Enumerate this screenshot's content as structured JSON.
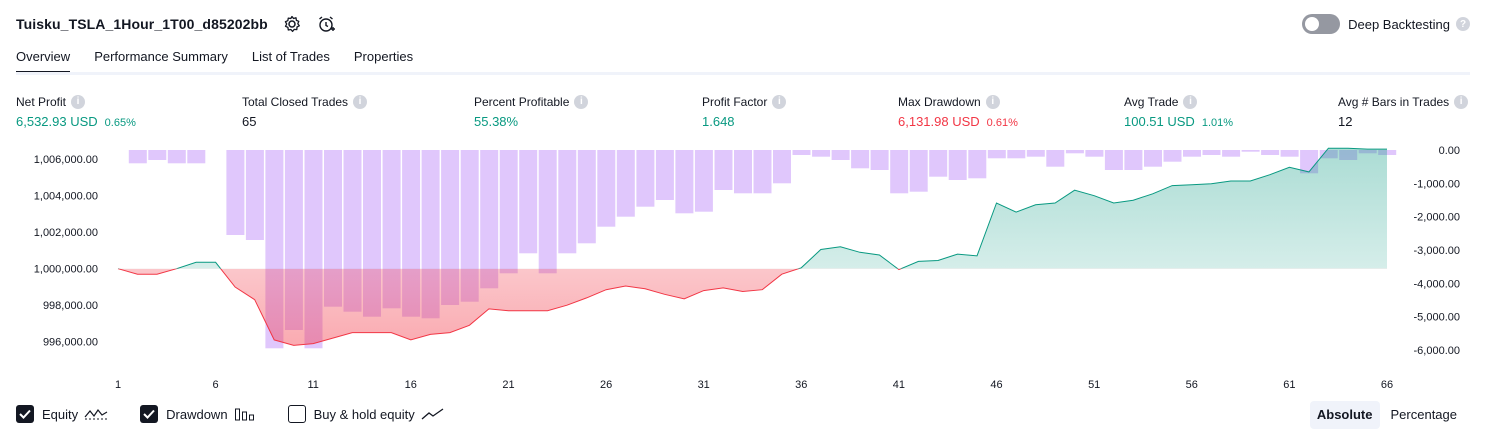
{
  "header": {
    "title": "Tuisku_TSLA_1Hour_1T00_d85202bb",
    "settings_icon": "gear-icon",
    "add_alert_icon": "alarm-clock-plus-icon"
  },
  "deep_backtesting": {
    "label": "Deep Backtesting",
    "enabled": false,
    "help": "?"
  },
  "tabs": [
    {
      "label": "Overview",
      "active": true
    },
    {
      "label": "Performance Summary",
      "active": false
    },
    {
      "label": "List of Trades",
      "active": false
    },
    {
      "label": "Properties",
      "active": false
    }
  ],
  "metrics": {
    "net_profit": {
      "label": "Net Profit",
      "value": "6,532.93 USD",
      "pct": "0.65%"
    },
    "total_closed_trades": {
      "label": "Total Closed Trades",
      "value": "65"
    },
    "percent_profitable": {
      "label": "Percent Profitable",
      "value": "55.38%"
    },
    "profit_factor": {
      "label": "Profit Factor",
      "value": "1.648"
    },
    "max_drawdown": {
      "label": "Max Drawdown",
      "value": "6,131.98 USD",
      "pct": "0.61%"
    },
    "avg_trade": {
      "label": "Avg Trade",
      "value": "100.51 USD",
      "pct": "1.01%"
    },
    "avg_bars": {
      "label": "Avg # Bars in Trades",
      "value": "12"
    }
  },
  "chart_data": {
    "type": "line",
    "x_ticks": [
      1,
      6,
      11,
      16,
      21,
      26,
      31,
      36,
      41,
      46,
      51,
      56,
      61,
      66
    ],
    "xlim": [
      1,
      66
    ],
    "left_axis": {
      "ticks": [
        "1,006,000.00",
        "1,004,000.00",
        "1,002,000.00",
        "1,000,000.00",
        "998,000.00",
        "996,000.00"
      ],
      "ylim": [
        995000,
        1006500
      ]
    },
    "right_axis": {
      "ticks": [
        "0.00",
        "-1,000.00",
        "-2,000.00",
        "-3,000.00",
        "-4,000.00",
        "-5,000.00",
        "-6,000.00"
      ],
      "ylim": [
        -6300,
        0
      ]
    },
    "baseline": 1000000,
    "series": [
      {
        "name": "Equity",
        "axis": "left",
        "values": [
          1000000,
          999700,
          999700,
          1000000,
          1000350,
          1000350,
          999000,
          998300,
          996100,
          995800,
          995900,
          996200,
          996500,
          996500,
          996500,
          996100,
          996400,
          996500,
          996900,
          997800,
          997700,
          997700,
          997700,
          998000,
          998400,
          998850,
          999050,
          998900,
          998600,
          998350,
          998800,
          998950,
          998750,
          998850,
          999700,
          1000050,
          1001050,
          1001200,
          1000900,
          1000750,
          999950,
          1000400,
          1000450,
          1000800,
          1000700,
          1003600,
          1003100,
          1003500,
          1003600,
          1004300,
          1004000,
          1003600,
          1003750,
          1004100,
          1004550,
          1004600,
          1004650,
          1004800,
          1004800,
          1005150,
          1005550,
          1005300,
          1006600,
          1006600,
          1006550,
          1006550
        ]
      },
      {
        "name": "Drawdown",
        "axis": "right",
        "values": [
          0,
          -400,
          -300,
          -400,
          -400,
          0,
          -2550,
          -2700,
          -5950,
          -5400,
          -5950,
          -4700,
          -4850,
          -5000,
          -4750,
          -5000,
          -5050,
          -4650,
          -4550,
          -4150,
          -3700,
          -3100,
          -3700,
          -3100,
          -2800,
          -2300,
          -2000,
          -1700,
          -1500,
          -1900,
          -1850,
          -1200,
          -1300,
          -1300,
          -1000,
          -150,
          -200,
          -300,
          -550,
          -600,
          -1300,
          -1250,
          -800,
          -900,
          -850,
          -250,
          -250,
          -200,
          -500,
          -100,
          -200,
          -600,
          -600,
          -500,
          -350,
          -200,
          -150,
          -200,
          -50,
          -150,
          -200,
          -700,
          -250,
          -300,
          -100,
          -150
        ]
      }
    ],
    "colors": {
      "equity_up": "#089981",
      "equity_down": "#f23645",
      "drawdown_bar": "#dbbdfb"
    }
  },
  "legend": [
    {
      "label": "Equity",
      "checked": true,
      "icon": "equity-line-icon"
    },
    {
      "label": "Drawdown",
      "checked": true,
      "icon": "drawdown-bars-icon"
    },
    {
      "label": "Buy & hold equity",
      "checked": false,
      "icon": "buy-hold-line-icon"
    }
  ],
  "mode": {
    "absolute": "Absolute",
    "percentage": "Percentage",
    "selected": "Absolute"
  },
  "colors": {
    "accent": "#131722",
    "positive": "#089981",
    "negative": "#f23645"
  }
}
